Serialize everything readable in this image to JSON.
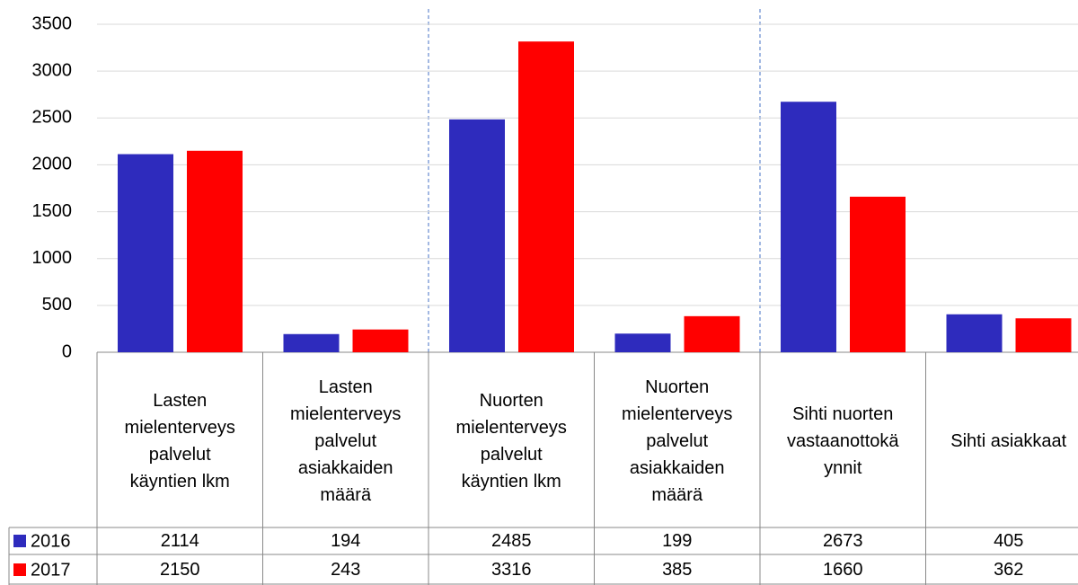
{
  "chart_data": {
    "type": "bar",
    "categories": [
      "Lasten\nmielenterveys\npalvelut\nkäyntien lkm",
      "Lasten\nmielenterveys\npalvelut\nasiakkaiden\nmäärä",
      "Nuorten\nmielenterveys\npalvelut\nkäyntien lkm",
      "Nuorten\nmielenterveys\npalvelut\nasiakkaiden\nmäärä",
      "Sihti nuorten\nvastaanottokä\nynnit",
      "Sihti asiakkaat"
    ],
    "series": [
      {
        "name": "2016",
        "color": "#2e2bbd",
        "values": [
          2114,
          194,
          2485,
          199,
          2673,
          405
        ]
      },
      {
        "name": "2017",
        "color": "#ff0000",
        "values": [
          2150,
          243,
          3316,
          385,
          1660,
          362
        ]
      }
    ],
    "ylim": [
      0,
      3500
    ],
    "yticks": [
      0,
      500,
      1000,
      1500,
      2000,
      2500,
      3000,
      3500
    ],
    "grid": true
  }
}
